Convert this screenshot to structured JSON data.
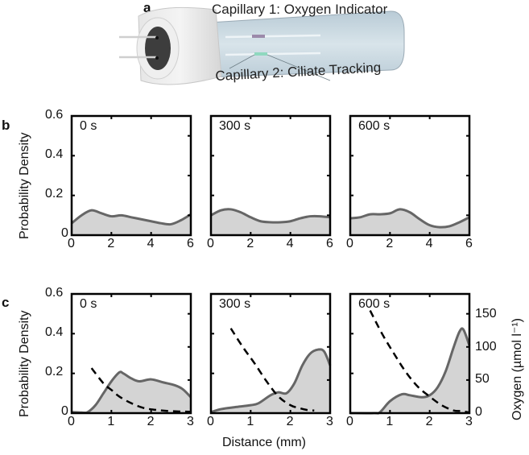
{
  "panel_a": {
    "letter": "a",
    "capillary_1_label": "Capillary 1: Oxygen Indicator",
    "capillary_2_label": "Capillary 2: Ciliate Tracking"
  },
  "panel_b": {
    "letter": "b",
    "ylabel": "Probability Density",
    "y_ticks": [
      "0",
      "0.2",
      "0.4",
      "0.6"
    ],
    "x_ticks": [
      "0",
      "2",
      "4",
      "6"
    ],
    "time_labels": [
      "0 s",
      "300 s",
      "600 s"
    ]
  },
  "panel_c": {
    "letter": "c",
    "ylabel": "Probability Density",
    "ylabel_right": "Oxygen (µmol l⁻¹)",
    "xlabel": "Distance (mm)",
    "y_ticks": [
      "0",
      "0.2",
      "0.4",
      "0.6"
    ],
    "y_ticks_right": [
      "0",
      "50",
      "100",
      "150"
    ],
    "x_ticks": [
      "0",
      "1",
      "2",
      "3"
    ],
    "time_labels": [
      "0 s",
      "300 s",
      "600 s"
    ]
  },
  "colors": {
    "density_line": "#666666",
    "density_fill": "#d4d4d4",
    "oxygen_line": "#000000",
    "axis": "#000000"
  },
  "chart_data": [
    {
      "type": "area",
      "panel": "b",
      "title": "0 s",
      "xlabel": "",
      "ylabel": "Probability Density",
      "xlim": [
        0,
        6
      ],
      "ylim": [
        0,
        0.6
      ],
      "x": [
        0,
        0.5,
        1,
        1.5,
        2,
        2.5,
        3,
        3.5,
        4,
        4.5,
        5,
        5.5,
        6
      ],
      "values": [
        0.06,
        0.1,
        0.125,
        0.11,
        0.095,
        0.1,
        0.09,
        0.08,
        0.07,
        0.06,
        0.055,
        0.075,
        0.105
      ]
    },
    {
      "type": "area",
      "panel": "b",
      "title": "300 s",
      "xlim": [
        0,
        6
      ],
      "ylim": [
        0,
        0.6
      ],
      "x": [
        0,
        0.5,
        1,
        1.5,
        2,
        2.5,
        3,
        3.5,
        4,
        4.5,
        5,
        5.5,
        6
      ],
      "values": [
        0.1,
        0.125,
        0.13,
        0.115,
        0.09,
        0.07,
        0.065,
        0.065,
        0.07,
        0.085,
        0.095,
        0.095,
        0.09
      ]
    },
    {
      "type": "area",
      "panel": "b",
      "title": "600 s",
      "xlim": [
        0,
        6
      ],
      "ylim": [
        0,
        0.6
      ],
      "x": [
        0,
        0.5,
        1,
        1.5,
        2,
        2.5,
        3,
        3.5,
        4,
        4.5,
        5,
        5.5,
        6
      ],
      "values": [
        0.085,
        0.09,
        0.105,
        0.105,
        0.11,
        0.13,
        0.115,
        0.08,
        0.05,
        0.04,
        0.045,
        0.065,
        0.09
      ]
    },
    {
      "type": "area",
      "panel": "c",
      "title": "0 s",
      "xlabel": "Distance (mm)",
      "ylabel": "Probability Density",
      "ylabel_right": "Oxygen (µmol l⁻¹)",
      "xlim": [
        0,
        3
      ],
      "ylim": [
        0,
        0.6
      ],
      "ylim_right": [
        0,
        180
      ],
      "series": [
        {
          "name": "Probability Density",
          "x": [
            0,
            0.25,
            0.4,
            0.6,
            0.8,
            1.0,
            1.2,
            1.3,
            1.5,
            1.7,
            2.0,
            2.3,
            2.6,
            2.8,
            3.0
          ],
          "values": [
            0.005,
            0.003,
            0.005,
            0.04,
            0.1,
            0.16,
            0.205,
            0.2,
            0.175,
            0.16,
            0.17,
            0.155,
            0.14,
            0.12,
            0.08
          ]
        },
        {
          "name": "Oxygen",
          "style": "dashed",
          "axis": "right",
          "x": [
            0.5,
            0.8,
            1.0,
            1.2,
            1.5,
            1.8,
            2.1,
            2.5,
            3.0
          ],
          "values": [
            68,
            45,
            35,
            25,
            15,
            8,
            5,
            3,
            2
          ]
        }
      ]
    },
    {
      "type": "area",
      "panel": "c",
      "title": "300 s",
      "xlim": [
        0,
        3
      ],
      "ylim": [
        0,
        0.6
      ],
      "ylim_right": [
        0,
        180
      ],
      "series": [
        {
          "name": "Probability Density",
          "x": [
            0,
            0.25,
            0.6,
            1.0,
            1.2,
            1.5,
            1.7,
            1.9,
            2.1,
            2.3,
            2.5,
            2.7,
            2.85,
            3.0
          ],
          "values": [
            0.005,
            0.02,
            0.03,
            0.04,
            0.05,
            0.09,
            0.105,
            0.1,
            0.15,
            0.24,
            0.3,
            0.32,
            0.31,
            0.24
          ]
        },
        {
          "name": "Oxygen",
          "style": "dashed",
          "axis": "right",
          "x": [
            0.5,
            0.8,
            1.1,
            1.4,
            1.7,
            2.0,
            2.2,
            2.4,
            2.6
          ],
          "values": [
            128,
            100,
            75,
            48,
            25,
            12,
            8,
            5,
            4
          ]
        }
      ]
    },
    {
      "type": "area",
      "panel": "c",
      "title": "600 s",
      "xlim": [
        0,
        3
      ],
      "ylim": [
        0,
        0.6
      ],
      "ylim_right": [
        0,
        180
      ],
      "series": [
        {
          "name": "Probability Density",
          "x": [
            0,
            0.6,
            0.75,
            1.0,
            1.3,
            1.5,
            1.8,
            2.0,
            2.2,
            2.4,
            2.6,
            2.75,
            2.85,
            3.0
          ],
          "values": [
            0,
            0,
            0.005,
            0.06,
            0.095,
            0.09,
            0.08,
            0.09,
            0.13,
            0.21,
            0.33,
            0.41,
            0.42,
            0.34
          ]
        },
        {
          "name": "Oxygen",
          "style": "dashed",
          "axis": "right",
          "x": [
            0.5,
            0.8,
            1.1,
            1.4,
            1.7,
            2.0,
            2.3,
            2.6,
            2.8,
            3.0
          ],
          "values": [
            155,
            120,
            90,
            62,
            40,
            25,
            12,
            4,
            3,
            1
          ]
        }
      ]
    }
  ]
}
